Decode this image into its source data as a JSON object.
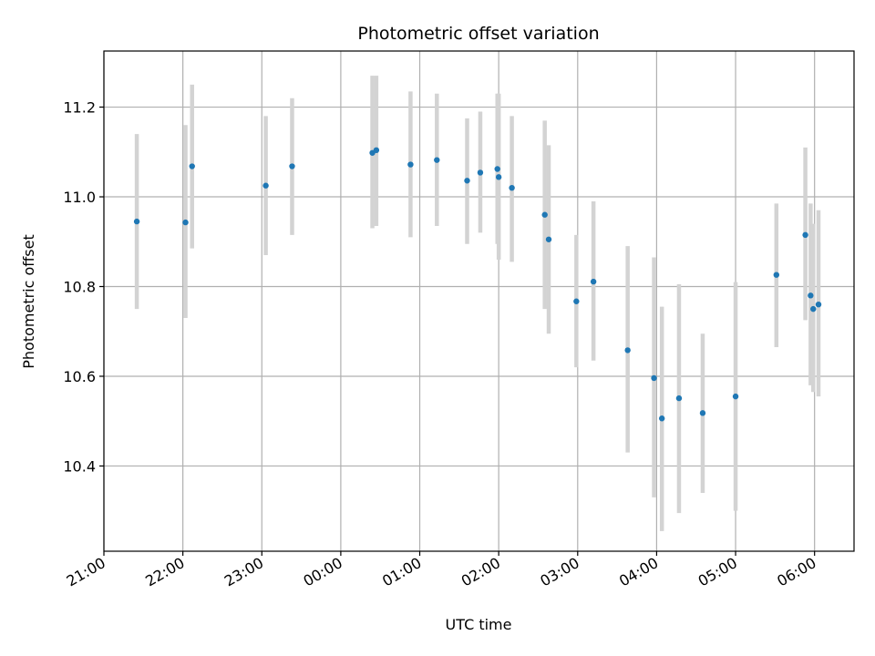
{
  "chart_data": {
    "type": "scatter",
    "title": "Photometric offset variation",
    "xlabel": "UTC time",
    "ylabel": "Photometric offset",
    "x_unit": "UTC time",
    "xlim": [
      "21:00",
      "06:30"
    ],
    "ylim": [
      10.21,
      11.325
    ],
    "grid": true,
    "legend": "none",
    "colors": {
      "point": "#1f77b4",
      "errorbar": "#d3d3d3",
      "grid": "#b0b0b0"
    },
    "x_ticks": [
      "21:00",
      "22:00",
      "23:00",
      "00:00",
      "01:00",
      "02:00",
      "03:00",
      "04:00",
      "05:00",
      "06:00"
    ],
    "y_ticks": [
      10.4,
      10.6,
      10.8,
      11.0,
      11.2
    ],
    "y_tick_labels": [
      "10.4",
      "10.6",
      "10.8",
      "11.0",
      "11.2"
    ],
    "points": [
      {
        "x": "21:25",
        "y": 10.945,
        "err_low": 10.75,
        "err_high": 11.14
      },
      {
        "x": "22:02",
        "y": 10.943,
        "err_low": 10.73,
        "err_high": 11.16
      },
      {
        "x": "22:07",
        "y": 11.068,
        "err_low": 10.885,
        "err_high": 11.25
      },
      {
        "x": "23:03",
        "y": 11.025,
        "err_low": 10.87,
        "err_high": 11.18
      },
      {
        "x": "23:23",
        "y": 11.068,
        "err_low": 10.915,
        "err_high": 11.22
      },
      {
        "x": "00:24",
        "y": 11.098,
        "err_low": 10.93,
        "err_high": 11.27
      },
      {
        "x": "00:27",
        "y": 11.104,
        "err_low": 10.935,
        "err_high": 11.27
      },
      {
        "x": "00:53",
        "y": 11.072,
        "err_low": 10.91,
        "err_high": 11.235
      },
      {
        "x": "01:13",
        "y": 11.082,
        "err_low": 10.935,
        "err_high": 11.23
      },
      {
        "x": "01:36",
        "y": 11.036,
        "err_low": 10.895,
        "err_high": 11.175
      },
      {
        "x": "01:46",
        "y": 11.054,
        "err_low": 10.92,
        "err_high": 11.19
      },
      {
        "x": "01:59",
        "y": 11.062,
        "err_low": 10.895,
        "err_high": 11.23
      },
      {
        "x": "02:00",
        "y": 11.044,
        "err_low": 10.86,
        "err_high": 11.23
      },
      {
        "x": "02:10",
        "y": 11.02,
        "err_low": 10.855,
        "err_high": 11.18
      },
      {
        "x": "02:35",
        "y": 10.96,
        "err_low": 10.75,
        "err_high": 11.17
      },
      {
        "x": "02:38",
        "y": 10.905,
        "err_low": 10.695,
        "err_high": 11.115
      },
      {
        "x": "02:59",
        "y": 10.767,
        "err_low": 10.62,
        "err_high": 10.915
      },
      {
        "x": "03:12",
        "y": 10.811,
        "err_low": 10.635,
        "err_high": 10.99
      },
      {
        "x": "03:38",
        "y": 10.658,
        "err_low": 10.43,
        "err_high": 10.89
      },
      {
        "x": "03:58",
        "y": 10.596,
        "err_low": 10.33,
        "err_high": 10.865
      },
      {
        "x": "04:04",
        "y": 10.506,
        "err_low": 10.255,
        "err_high": 10.755
      },
      {
        "x": "04:17",
        "y": 10.551,
        "err_low": 10.295,
        "err_high": 10.805
      },
      {
        "x": "04:35",
        "y": 10.518,
        "err_low": 10.34,
        "err_high": 10.695
      },
      {
        "x": "05:00",
        "y": 10.555,
        "err_low": 10.3,
        "err_high": 10.81
      },
      {
        "x": "05:31",
        "y": 10.826,
        "err_low": 10.665,
        "err_high": 10.985
      },
      {
        "x": "05:53",
        "y": 10.915,
        "err_low": 10.725,
        "err_high": 11.11
      },
      {
        "x": "05:57",
        "y": 10.78,
        "err_low": 10.58,
        "err_high": 10.985
      },
      {
        "x": "05:59",
        "y": 10.75,
        "err_low": 10.565,
        "err_high": 10.94
      },
      {
        "x": "06:03",
        "y": 10.76,
        "err_low": 10.555,
        "err_high": 10.97
      }
    ]
  }
}
